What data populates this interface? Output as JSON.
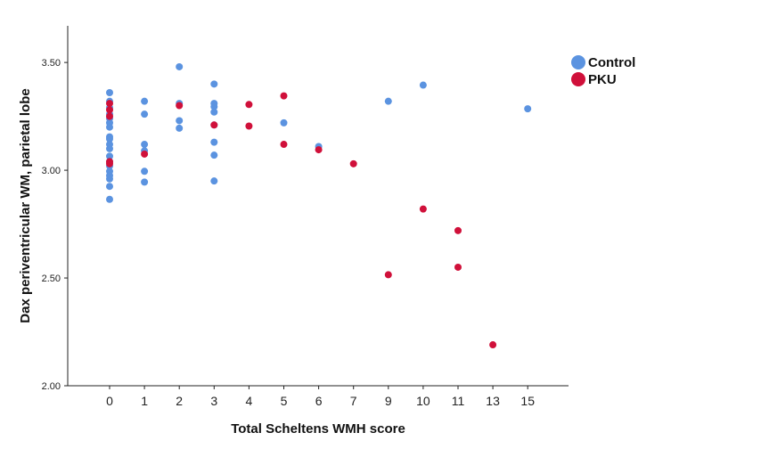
{
  "chart_data": {
    "type": "scatter",
    "xlabel": "Total Scheltens WMH score",
    "ylabel": "Dax periventricular WM, parietal lobe",
    "categories": [
      "0",
      "1",
      "2",
      "3",
      "4",
      "5",
      "6",
      "7",
      "9",
      "10",
      "11",
      "13",
      "15"
    ],
    "ylim": [
      2.0,
      3.67
    ],
    "yticks": [
      "2.00",
      "2.50",
      "3.00",
      "3.50"
    ],
    "grid": false,
    "legend_position": "top-right",
    "series": [
      {
        "name": "Control",
        "color": "#5B93E0",
        "points": [
          {
            "x": "0",
            "y": 3.36
          },
          {
            "x": "0",
            "y": 3.32
          },
          {
            "x": "0",
            "y": 3.29
          },
          {
            "x": "0",
            "y": 3.26
          },
          {
            "x": "0",
            "y": 3.24
          },
          {
            "x": "0",
            "y": 3.22
          },
          {
            "x": "0",
            "y": 3.2
          },
          {
            "x": "0",
            "y": 3.155
          },
          {
            "x": "0",
            "y": 3.145
          },
          {
            "x": "0",
            "y": 3.12
          },
          {
            "x": "0",
            "y": 3.1
          },
          {
            "x": "0",
            "y": 3.065
          },
          {
            "x": "0",
            "y": 3.04
          },
          {
            "x": "0",
            "y": 3.02
          },
          {
            "x": "0",
            "y": 2.995
          },
          {
            "x": "0",
            "y": 2.975
          },
          {
            "x": "0",
            "y": 2.96
          },
          {
            "x": "0",
            "y": 2.925
          },
          {
            "x": "0",
            "y": 2.865
          },
          {
            "x": "1",
            "y": 3.32
          },
          {
            "x": "1",
            "y": 3.26
          },
          {
            "x": "1",
            "y": 3.12
          },
          {
            "x": "1",
            "y": 3.09
          },
          {
            "x": "1",
            "y": 2.995
          },
          {
            "x": "1",
            "y": 2.945
          },
          {
            "x": "2",
            "y": 3.48
          },
          {
            "x": "2",
            "y": 3.31
          },
          {
            "x": "2",
            "y": 3.23
          },
          {
            "x": "2",
            "y": 3.195
          },
          {
            "x": "3",
            "y": 3.4
          },
          {
            "x": "3",
            "y": 3.31
          },
          {
            "x": "3",
            "y": 3.295
          },
          {
            "x": "3",
            "y": 3.27
          },
          {
            "x": "3",
            "y": 3.21
          },
          {
            "x": "3",
            "y": 3.13
          },
          {
            "x": "3",
            "y": 3.07
          },
          {
            "x": "3",
            "y": 2.95
          },
          {
            "x": "5",
            "y": 3.22
          },
          {
            "x": "6",
            "y": 3.11
          },
          {
            "x": "9",
            "y": 3.32
          },
          {
            "x": "10",
            "y": 3.395
          },
          {
            "x": "15",
            "y": 3.285
          }
        ]
      },
      {
        "name": "PKU",
        "color": "#D0103A",
        "points": [
          {
            "x": "0",
            "y": 3.31
          },
          {
            "x": "0",
            "y": 3.28
          },
          {
            "x": "0",
            "y": 3.25
          },
          {
            "x": "0",
            "y": 3.04
          },
          {
            "x": "0",
            "y": 3.03
          },
          {
            "x": "1",
            "y": 3.075
          },
          {
            "x": "2",
            "y": 3.3
          },
          {
            "x": "3",
            "y": 3.21
          },
          {
            "x": "4",
            "y": 3.305
          },
          {
            "x": "4",
            "y": 3.205
          },
          {
            "x": "5",
            "y": 3.345
          },
          {
            "x": "5",
            "y": 3.12
          },
          {
            "x": "6",
            "y": 3.095
          },
          {
            "x": "7",
            "y": 3.03
          },
          {
            "x": "9",
            "y": 2.515
          },
          {
            "x": "10",
            "y": 2.82
          },
          {
            "x": "11",
            "y": 2.72
          },
          {
            "x": "11",
            "y": 2.55
          },
          {
            "x": "13",
            "y": 2.19
          }
        ]
      }
    ]
  }
}
